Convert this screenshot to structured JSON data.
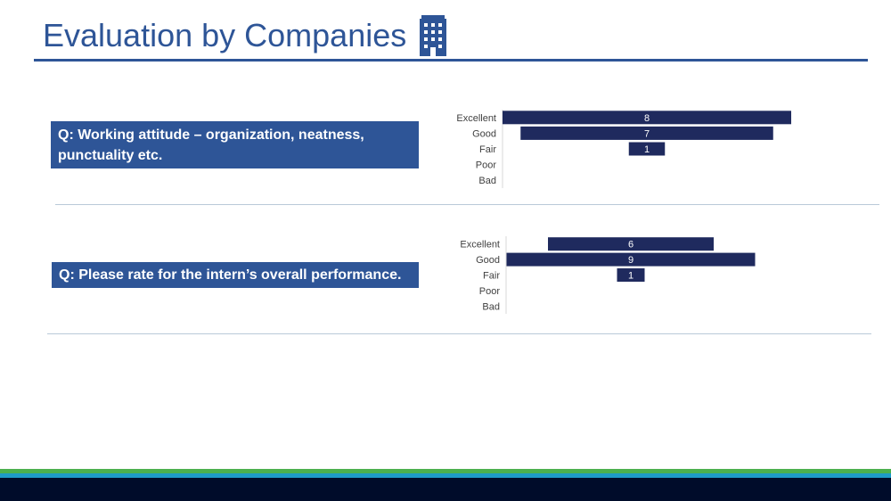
{
  "slide": {
    "title": "Evaluation by Companies",
    "title_icon": "office-building-icon"
  },
  "colors": {
    "title": "#2e5597",
    "question_box": "#2e5597",
    "bar": "#1f2a5e",
    "footer": "#000c2a",
    "stripe_green": "#4cb04f",
    "stripe_teal": "#1e9bc7"
  },
  "questions": [
    "Q: Working attitude – organization, neatness, punctuality etc.",
    "Q: Please rate for the intern’s overall performance."
  ],
  "chart_data": [
    {
      "type": "bar",
      "orientation": "horizontal",
      "style": "centered",
      "categories": [
        "Excellent",
        "Good",
        "Fair",
        "Poor",
        "Bad"
      ],
      "values": [
        8,
        7,
        1,
        0,
        0
      ],
      "xlim": [
        0,
        9
      ],
      "grid": false,
      "data_labels": true
    },
    {
      "type": "bar",
      "orientation": "horizontal",
      "style": "centered",
      "categories": [
        "Excellent",
        "Good",
        "Fair",
        "Poor",
        "Bad"
      ],
      "values": [
        6,
        9,
        1,
        0,
        0
      ],
      "xlim": [
        0,
        9
      ],
      "grid": false,
      "data_labels": true
    }
  ]
}
